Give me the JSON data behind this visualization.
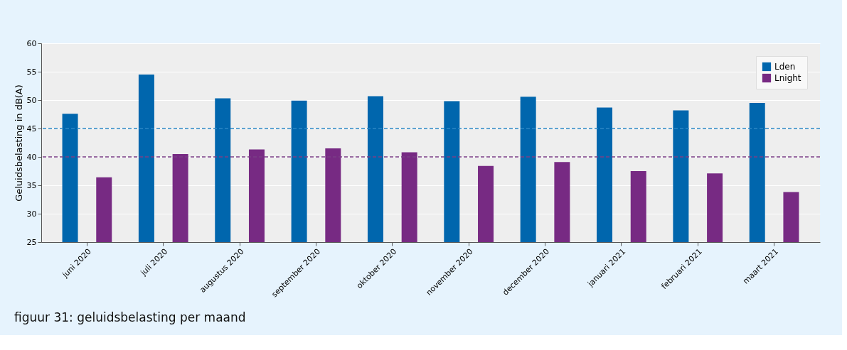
{
  "chart_data": {
    "type": "bar",
    "ylabel": "Geluidsbelasting in dB(A)",
    "categories": [
      "juni 2020",
      "juli 2020",
      "augustus 2020",
      "september 2020",
      "oktober 2020",
      "november 2020",
      "december 2020",
      "januari 2021",
      "februari 2021",
      "maart 2021"
    ],
    "series": [
      {
        "name": "Lden",
        "color": "#0066ad",
        "values": [
          47.6,
          54.5,
          50.3,
          49.9,
          50.7,
          49.8,
          50.6,
          48.7,
          48.2,
          49.5
        ]
      },
      {
        "name": "Lnight",
        "color": "#772a83",
        "values": [
          36.4,
          40.5,
          41.3,
          41.5,
          40.8,
          38.4,
          39.1,
          37.5,
          37.1,
          33.8
        ]
      }
    ],
    "ylim": [
      25,
      60
    ],
    "yticks": [
      25,
      30,
      35,
      40,
      45,
      50,
      55,
      60
    ],
    "grid": "y",
    "legend": "top right",
    "ref_lines": [
      {
        "axis": "y",
        "value": 45,
        "color": "#2b86c5",
        "line_style": "dashed"
      },
      {
        "axis": "y",
        "value": 40,
        "color": "#7b3f86",
        "line_style": "dashed"
      }
    ],
    "annotations": [
      "figuur 31: geluidsbelasting per maand"
    ]
  }
}
